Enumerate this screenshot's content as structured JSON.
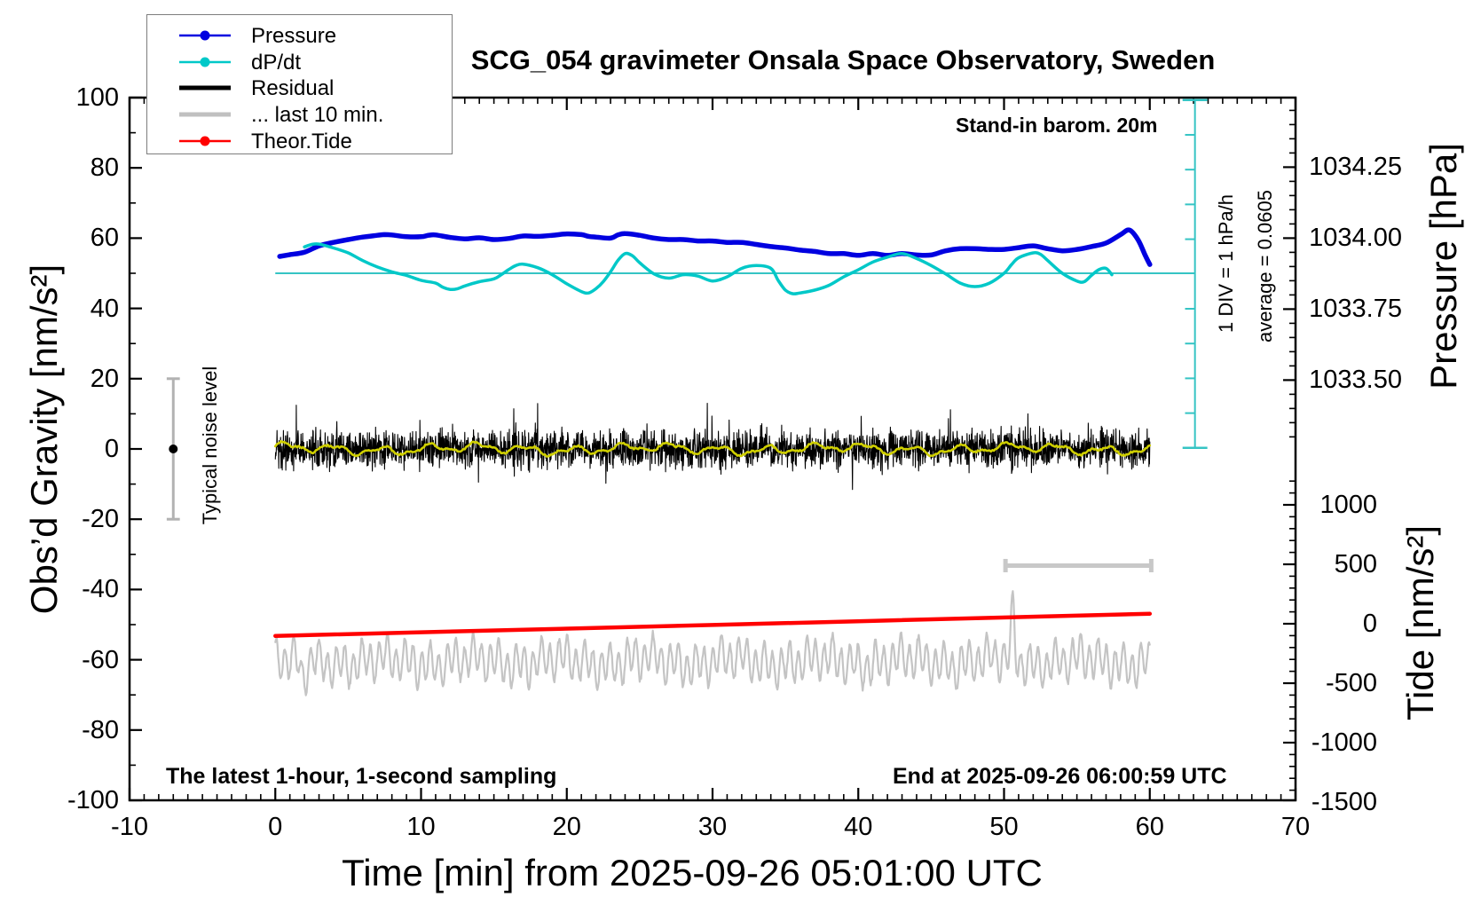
{
  "title": "SCG_054 gravimeter Onsala Space Observatory, Sweden",
  "annotations": {
    "standin": "Stand-in barom. 20m",
    "sampling": "The latest 1-hour, 1-second sampling",
    "end_time": "End at 2025-09-26 06:00:59 UTC",
    "div_scale": "1 DIV = 1 hPa/h",
    "average": "average = 0.0605",
    "noise_level": "Typical noise level"
  },
  "axes": {
    "x": {
      "label": "Time [min] from 2025-09-26 05:01:00 UTC",
      "min": -10,
      "max": 70,
      "major_ticks": [
        -10,
        0,
        10,
        20,
        30,
        40,
        50,
        60,
        70
      ],
      "minor_step": 1
    },
    "y_left": {
      "label": "Obs’d Gravity [nm/s²]",
      "min": -100,
      "max": 100,
      "major_ticks": [
        100,
        80,
        60,
        40,
        20,
        0,
        -20,
        -40,
        -60,
        -80,
        -100
      ],
      "minor_step": 10
    },
    "y_right_pressure": {
      "label": "Pressure [hPa]",
      "tick_values": [
        1034.25,
        1034.0,
        1033.75,
        1033.5
      ],
      "tick_labels": [
        "1034.25",
        "1034.00",
        "1033.75",
        "1033.50"
      ],
      "minor_step": 0.05,
      "minor_range": [
        1033.3,
        1034.45
      ],
      "ref_pressure": 1034.0,
      "ref_gravity": 60,
      "gravity_units_per_hPa": 80.8
    },
    "y_right_tide": {
      "label": "Tide [nm/s²]",
      "tick_values": [
        1000,
        500,
        0,
        -500,
        -1000,
        -1500
      ],
      "tick_labels": [
        "1000",
        "500",
        "0",
        "-500",
        "-1000",
        "-1500"
      ],
      "minor_step": 100,
      "minor_range": [
        -1500,
        1200
      ],
      "zero_gravity": -49.75,
      "gravity_units_per_unit": 0.03384
    }
  },
  "legend": {
    "items": [
      {
        "label": "Pressure",
        "color": "#0000e0",
        "linewidth": 2.5,
        "dot": true
      },
      {
        "label": "dP/dt",
        "color": "#00c8c8",
        "linewidth": 2.5,
        "dot": true
      },
      {
        "label": "Residual",
        "color": "#000000",
        "linewidth": 5,
        "dot": false
      },
      {
        "label": "... last 10 min.",
        "color": "#c0c0c0",
        "linewidth": 5,
        "dot": false
      },
      {
        "label": "Theor.Tide",
        "color": "#ff0000",
        "linewidth": 2.5,
        "dot": true
      }
    ]
  },
  "colors": {
    "pressure": "#0000e0",
    "dpdt": "#00c8c8",
    "dpdt_thin": "#35c4c4",
    "residual": "#000000",
    "residual_smooth": "#cfcf00",
    "last10": "#c4c4c4",
    "tide": "#ff0000",
    "errorbar": "#b2b2b2",
    "scalebar": "#c8c8c8",
    "frame": "#000000"
  },
  "chart_data": {
    "type": "line",
    "x_units": "minutes from 2025-09-26 05:01:00 UTC",
    "noise_seed": 42,
    "series": [
      {
        "name": "Pressure",
        "color": "#0000e0",
        "axis": "right-pressure",
        "pressure_hPa_range": [
          1033.91,
          1034.03
        ],
        "points_gravity": [
          [
            0.3,
            54.8
          ],
          [
            1,
            55.3
          ],
          [
            2,
            56.0
          ],
          [
            3,
            57.8
          ],
          [
            4,
            58.8
          ],
          [
            5,
            59.6
          ],
          [
            6,
            60.3
          ],
          [
            7,
            60.8
          ],
          [
            7.5,
            61.0
          ],
          [
            8,
            60.9
          ],
          [
            9,
            60.4
          ],
          [
            10,
            60.4
          ],
          [
            10.5,
            60.8
          ],
          [
            11,
            60.9
          ],
          [
            12,
            60.2
          ],
          [
            13,
            59.8
          ],
          [
            14,
            60.1
          ],
          [
            15,
            59.6
          ],
          [
            16,
            59.9
          ],
          [
            17,
            60.6
          ],
          [
            18,
            60.5
          ],
          [
            19,
            60.8
          ],
          [
            20,
            61.2
          ],
          [
            21,
            61.0
          ],
          [
            21.5,
            60.5
          ],
          [
            22,
            60.3
          ],
          [
            23,
            60.0
          ],
          [
            23.5,
            60.9
          ],
          [
            24,
            61.3
          ],
          [
            25,
            60.8
          ],
          [
            26,
            60.0
          ],
          [
            27,
            59.6
          ],
          [
            28,
            59.6
          ],
          [
            29,
            59.2
          ],
          [
            30,
            59.2
          ],
          [
            31,
            58.8
          ],
          [
            32,
            58.8
          ],
          [
            33,
            58.2
          ],
          [
            34,
            57.6
          ],
          [
            35,
            57.2
          ],
          [
            36,
            56.6
          ],
          [
            37,
            56.2
          ],
          [
            38,
            55.6
          ],
          [
            39,
            55.6
          ],
          [
            40,
            55.1
          ],
          [
            41,
            55.6
          ],
          [
            42,
            55.1
          ],
          [
            43,
            55.6
          ],
          [
            44,
            55.2
          ],
          [
            45,
            55.2
          ],
          [
            46,
            56.4
          ],
          [
            47,
            57.0
          ],
          [
            48,
            57.0
          ],
          [
            49,
            56.8
          ],
          [
            50,
            56.8
          ],
          [
            51,
            57.3
          ],
          [
            52,
            57.8
          ],
          [
            53,
            57.0
          ],
          [
            54,
            56.4
          ],
          [
            55,
            56.8
          ],
          [
            56,
            57.6
          ],
          [
            57,
            58.6
          ],
          [
            58,
            61.0
          ],
          [
            58.6,
            62.3
          ],
          [
            59.2,
            59.5
          ],
          [
            59.7,
            55.0
          ],
          [
            60,
            52.5
          ]
        ]
      },
      {
        "name": "dP/dt",
        "color": "#00c8c8",
        "axis": "dpdt-scalebar",
        "scale_note": "zero line at gravity 50; 1 DIV = 1 hPa/h = 9.9 gravity units",
        "points_gravity": [
          [
            2,
            57.5
          ],
          [
            2.5,
            58.2
          ],
          [
            3,
            58.3
          ],
          [
            4,
            57.2
          ],
          [
            5,
            55.8
          ],
          [
            6,
            53.6
          ],
          [
            7,
            51.8
          ],
          [
            8,
            50.4
          ],
          [
            9,
            49.4
          ],
          [
            10,
            48.0
          ],
          [
            11,
            47.2
          ],
          [
            11.5,
            46.0
          ],
          [
            12,
            45.4
          ],
          [
            12.5,
            45.6
          ],
          [
            13,
            46.4
          ],
          [
            14,
            47.6
          ],
          [
            15,
            48.4
          ],
          [
            15.5,
            49.6
          ],
          [
            16,
            51.0
          ],
          [
            16.5,
            52.2
          ],
          [
            17,
            52.6
          ],
          [
            18,
            51.6
          ],
          [
            19,
            49.6
          ],
          [
            20,
            47.0
          ],
          [
            21,
            44.8
          ],
          [
            21.5,
            44.4
          ],
          [
            22,
            45.6
          ],
          [
            22.5,
            47.6
          ],
          [
            23,
            50.4
          ],
          [
            23.5,
            53.6
          ],
          [
            24,
            55.6
          ],
          [
            24.5,
            55.0
          ],
          [
            25,
            53.0
          ],
          [
            26,
            49.8
          ],
          [
            27,
            48.6
          ],
          [
            28,
            49.6
          ],
          [
            29,
            49.2
          ],
          [
            30,
            47.8
          ],
          [
            31,
            49.0
          ],
          [
            32,
            51.4
          ],
          [
            33,
            52.2
          ],
          [
            34,
            51.4
          ],
          [
            34.5,
            48.0
          ],
          [
            35,
            45.2
          ],
          [
            35.5,
            44.2
          ],
          [
            36,
            44.4
          ],
          [
            37,
            45.2
          ],
          [
            38,
            46.6
          ],
          [
            39,
            49.0
          ],
          [
            40,
            51.0
          ],
          [
            41,
            53.2
          ],
          [
            42,
            54.6
          ],
          [
            43,
            55.6
          ],
          [
            44,
            54.2
          ],
          [
            45,
            52.2
          ],
          [
            46,
            49.8
          ],
          [
            47,
            47.2
          ],
          [
            48,
            46.2
          ],
          [
            49,
            47.2
          ],
          [
            50,
            50.0
          ],
          [
            50.5,
            52.4
          ],
          [
            51,
            54.4
          ],
          [
            52,
            55.8
          ],
          [
            52.5,
            55.4
          ],
          [
            53,
            53.6
          ],
          [
            54,
            50.0
          ],
          [
            55,
            47.8
          ],
          [
            55.5,
            47.6
          ],
          [
            56,
            49.4
          ],
          [
            56.5,
            51.0
          ],
          [
            57,
            51.4
          ],
          [
            57.4,
            49.6
          ]
        ]
      },
      {
        "name": "Residual",
        "color": "#000000",
        "axis": "left-gravity",
        "noise_band": {
          "x_range": [
            0,
            60
          ],
          "mean": 0,
          "typical_amplitude": 8,
          "max_spike": 13,
          "sample_step_min": 0.02
        }
      },
      {
        "name": "Residual smoothed",
        "color": "#cfcf00",
        "axis": "left-gravity",
        "smooth_wiggle": {
          "x_range": [
            0,
            60
          ],
          "mean": 0,
          "amplitude": 1.6,
          "sample_step_min": 0.1
        }
      },
      {
        "name": "... last 10 min.",
        "color": "#c4c4c4",
        "axis": "left-gravity",
        "wiggle": {
          "x_range": [
            0,
            60
          ],
          "center": -60.5,
          "amplitude": 7,
          "period_min": 0.6,
          "spike_up": {
            "x": 50.6,
            "peak": -47.5
          },
          "dip_down": {
            "x": 1.9,
            "min": -72.5
          },
          "sample_step_min": 0.05
        }
      },
      {
        "name": "Theor.Tide",
        "color": "#ff0000",
        "axis": "right-tide",
        "tide_values_range": [
          -100,
          90
        ],
        "points_gravity": [
          [
            0,
            -53.2
          ],
          [
            30,
            -50.1
          ],
          [
            60,
            -46.9
          ]
        ]
      }
    ],
    "markers": {
      "dpdt_zero_line": {
        "gravity": 50,
        "x_from": 0,
        "x_to": 63.1
      },
      "dpdt_scalebar": {
        "x_min": 63.1,
        "g_top": 99.3,
        "g_bottom": 0.3,
        "divisions": 10,
        "cap_half_min": 0.85
      },
      "ten_min_bar": {
        "gravity": -33.2,
        "x_from": 50.1,
        "x_to": 60.1,
        "cap_half_g": 1.9
      },
      "noise_errorbar": {
        "x_min": -7,
        "g_center": 0,
        "g_half": 20,
        "cap_half_min": 0.45
      }
    }
  }
}
